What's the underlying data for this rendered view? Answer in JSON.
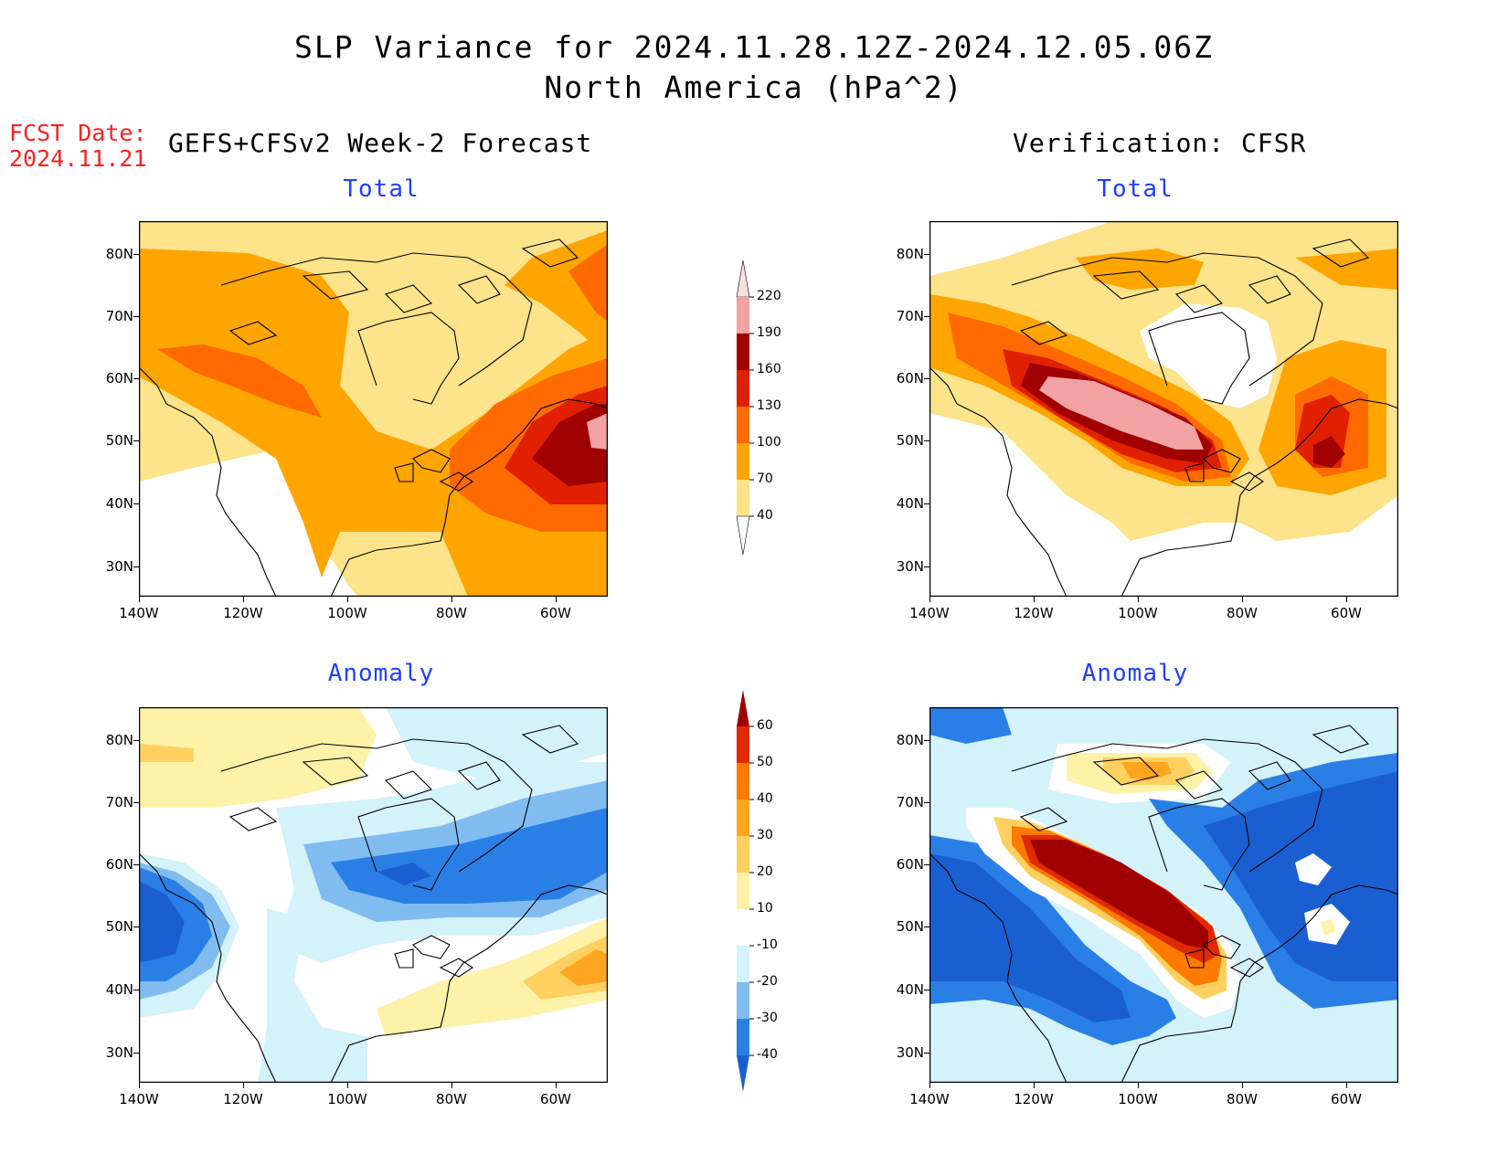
{
  "title_line1": "SLP Variance for 2024.11.28.12Z-2024.12.05.06Z",
  "title_line2": "North America (hPa^2)",
  "fcst_label": "FCST Date:",
  "fcst_date": "2024.11.21",
  "left_column_title": "GEFS+CFSv2 Week-2 Forecast",
  "right_column_title": "Verification: CFSR",
  "panel_titles": {
    "forecast_total": "Total",
    "verification_total": "Total",
    "forecast_anomaly": "Anomaly",
    "verification_anomaly": "Anomaly"
  },
  "lat_labels": [
    "80N",
    "70N",
    "60N",
    "50N",
    "40N",
    "30N"
  ],
  "lon_labels": [
    "140W",
    "120W",
    "100W",
    "80W",
    "60W"
  ],
  "total_colorbar": {
    "levels": [
      "40",
      "70",
      "100",
      "130",
      "160",
      "190",
      "220"
    ],
    "colors": [
      "#fde38a",
      "#ffa500",
      "#ff6a00",
      "#e02000",
      "#a00000",
      "#f2a2a2",
      "#fbe0e0"
    ]
  },
  "anomaly_colorbar": {
    "levels": [
      "60",
      "50",
      "40",
      "30",
      "20",
      "10",
      "-10",
      "-20",
      "-30",
      "-40"
    ],
    "colors": [
      "#1a5fd2",
      "#2a7fe6",
      "#80bcf0",
      "#d4f2fa",
      "#ffffff",
      "#fdf2a8",
      "#ffd060",
      "#ffa520",
      "#ff7a00",
      "#e02a00",
      "#a00000"
    ]
  },
  "chart_data": [
    {
      "type": "heatmap",
      "title": "Total",
      "panel": "GEFS+CFSv2 Week-2 Forecast",
      "units": "hPa^2",
      "x_range": [
        "140W",
        "50W"
      ],
      "y_range": [
        "25N",
        "85N"
      ],
      "features": [
        {
          "region": "NW Atlantic / Maritimes (~52W,50N)",
          "max_value": "190-220"
        },
        {
          "region": "Great Lakes to Labrador",
          "value": "100-160"
        },
        {
          "region": "NW Canada / Alaska to US Plains band",
          "value": "70-130"
        },
        {
          "region": "Arctic / Hudson Bay",
          "value": "40-70"
        },
        {
          "region": "US West coast / Southwest",
          "value": "<40"
        }
      ]
    },
    {
      "type": "heatmap",
      "title": "Total",
      "panel": "Verification: CFSR",
      "units": "hPa^2",
      "x_range": [
        "140W",
        "50W"
      ],
      "y_range": [
        "25N",
        "85N"
      ],
      "features": [
        {
          "region": "Central Canada (~110W-85W, 48N-58N)",
          "max_value": "190-220"
        },
        {
          "region": "Gulf of St. Lawrence (~62W,48N)",
          "value": "130-190"
        },
        {
          "region": "Hudson Bay / Quebec",
          "value": "<40"
        },
        {
          "region": "Canadian Arctic Archipelago (~90W,80N)",
          "value": "70-100"
        }
      ]
    },
    {
      "type": "heatmap",
      "title": "Anomaly",
      "panel": "GEFS+CFSv2 Week-2 Forecast",
      "units": "hPa^2",
      "x_range": [
        "140W",
        "50W"
      ],
      "y_range": [
        "25N",
        "85N"
      ],
      "features": [
        {
          "region": "Gulf of Alaska coast (~140W,48N)",
          "value": "-30 to -40"
        },
        {
          "region": "Central/Eastern Canada",
          "value": "-20 to -40"
        },
        {
          "region": "NW Atlantic (~55W,42N)",
          "value": "20-40"
        },
        {
          "region": "High Arctic (~130W,78N)",
          "value": "10-30"
        },
        {
          "region": "US East",
          "value": "10-20"
        }
      ]
    },
    {
      "type": "heatmap",
      "title": "Anomaly",
      "panel": "Verification: CFSR",
      "units": "hPa^2",
      "x_range": [
        "140W",
        "50W"
      ],
      "y_range": [
        "25N",
        "85N"
      ],
      "features": [
        {
          "region": "Band NW Canada to Great Lakes (~120W,60N to 82W,42N)",
          "max_value": ">60"
        },
        {
          "region": "Canadian Arctic Archipelago (~90W,78N)",
          "value": "20-40"
        },
        {
          "region": "US West / Pacific",
          "value": "-30 to -40"
        },
        {
          "region": "Quebec / Labrador / Hudson Bay",
          "value": "-30 to -40"
        }
      ]
    }
  ]
}
